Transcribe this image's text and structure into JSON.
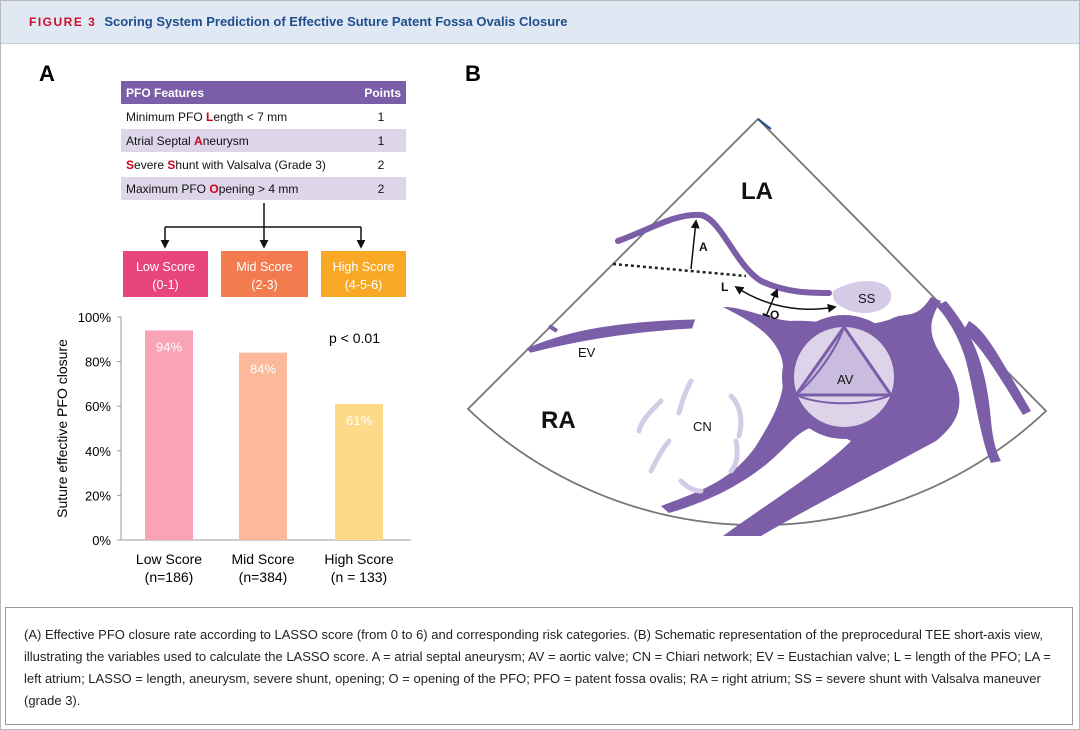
{
  "header": {
    "figure_label": "FIGURE 3",
    "title": "Scoring System Prediction of Effective Suture Patent Fossa Ovalis Closure"
  },
  "panels": [
    "A",
    "B"
  ],
  "table": {
    "columns": [
      "PFO Features",
      "Points"
    ],
    "rows": [
      {
        "feature": [
          {
            "text": "Minimum PFO "
          },
          {
            "text": "L",
            "color": "#d0021b"
          },
          {
            "text": "ength < 7 mm"
          }
        ],
        "points": 1
      },
      {
        "feature": [
          {
            "text": "Atrial Septal "
          },
          {
            "text": "A",
            "color": "#d0021b"
          },
          {
            "text": "neurysm"
          }
        ],
        "points": 1
      },
      {
        "feature": [
          {
            "text": "S",
            "color": "#d0021b"
          },
          {
            "text": "evere "
          },
          {
            "text": "S",
            "color": "#d0021b"
          },
          {
            "text": "hunt with Valsalva (Grade 3)"
          }
        ],
        "points": 2
      },
      {
        "feature": [
          {
            "text": "Maximum PFO "
          },
          {
            "text": "O",
            "color": "#d0021b"
          },
          {
            "text": "pening > 4 mm"
          }
        ],
        "points": 2
      }
    ]
  },
  "score_groups": [
    {
      "name": "Low Score",
      "range": "(0-1)",
      "color": "#e8457a"
    },
    {
      "name": "Mid Score",
      "range": "(2-3)",
      "color": "#f27c4f"
    },
    {
      "name": "High Score",
      "range": "(4-5-6)",
      "color": "#f9a825"
    }
  ],
  "chart_data": {
    "type": "bar",
    "ylabel": "Suture effective PFO closure",
    "categories": [
      "Low Score",
      "Mid Score",
      "High Score"
    ],
    "category_notes": [
      "(n=186)",
      "(n=384)",
      "(n = 133)"
    ],
    "values": [
      94,
      84,
      61
    ],
    "value_labels": [
      "94%",
      "84%",
      "61%"
    ],
    "colors": [
      "#f9a3b6",
      "#fbb999",
      "#fdd98a"
    ],
    "ylim": [
      0,
      100
    ],
    "yticks": [
      {
        "value": 0,
        "label": "0%"
      },
      {
        "value": 20,
        "label": "20%"
      },
      {
        "value": 40,
        "label": "40%"
      },
      {
        "value": 60,
        "label": "60%"
      },
      {
        "value": 80,
        "label": "80%"
      },
      {
        "value": 100,
        "label": "100%"
      }
    ],
    "annotation": "p < 0.01"
  },
  "diagram": {
    "labels": [
      "LA",
      "RA",
      "EV",
      "CN",
      "AV",
      "SS",
      "A",
      "L",
      "O"
    ]
  },
  "caption": "(A) Effective PFO closure rate according to LASSO score (from 0 to 6) and corresponding risk categories. (B) Schematic representation of the preprocedural TEE short-axis view, illustrating the variables used to calculate the LASSO score. A = atrial septal aneurysm; AV = aortic valve; CN = Chiari network; EV = Eustachian valve; L = length of the PFO; LA = left atrium; LASSO = length, aneurysm, severe shunt, opening; O = opening of the PFO; PFO = patent fossa ovalis; RA = right atrium; SS = severe shunt with Valsalva maneuver (grade 3)."
}
